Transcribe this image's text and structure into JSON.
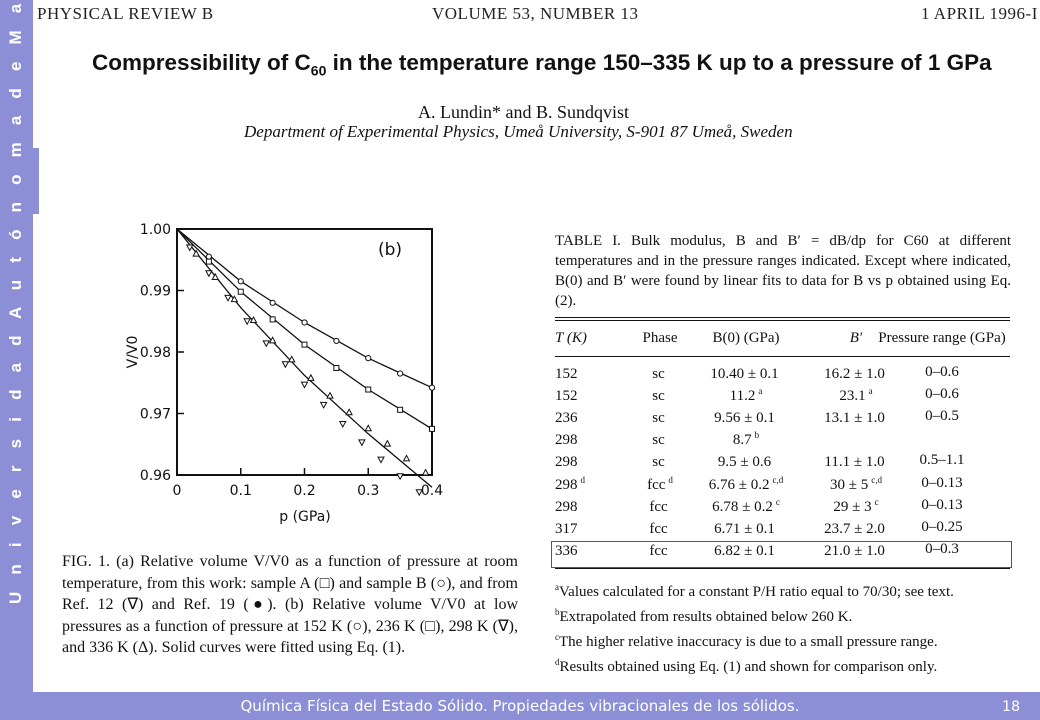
{
  "sidebar": {
    "text": "U n i v e r s i d a d   A u t ó n o m a   d e   M a d r i d"
  },
  "header": {
    "journal": "PHYSICAL REVIEW B",
    "volume": "VOLUME 53, NUMBER 13",
    "date": "1 APRIL 1996-I"
  },
  "title": {
    "before": "Compressibility of C",
    "sub": "60",
    "after": " in the temperature range 150–335 K up to a pressure of 1 GPa"
  },
  "authors": "A. Lundin* and B. Sundqvist",
  "affiliation": "Department of Experimental Physics, Umeå University, S-901 87 Umeå, Sweden",
  "table": {
    "caption": "TABLE I. Bulk modulus, B and B′ = dB/dp for C60 at different temperatures and in the pressure ranges indicated. Except where indicated, B(0) and B′ were found by linear fits to data for B vs p obtained using Eq. (2).",
    "columns": [
      "T (K)",
      "Phase",
      "B(0) (GPa)",
      "B′",
      "Pressure range (GPa)"
    ],
    "rows": [
      {
        "t": "152",
        "t_sup": "",
        "phase": "sc",
        "phase_sup": "",
        "b0": "10.40 ± 0.1",
        "b0_sup": "",
        "bp": "16.2 ± 1.0",
        "bp_sup": "",
        "range": "0–0.6"
      },
      {
        "t": "152",
        "t_sup": "",
        "phase": "sc",
        "phase_sup": "",
        "b0": "11.2",
        "b0_sup": "a",
        "bp": "23.1",
        "bp_sup": "a",
        "range": "0–0.6"
      },
      {
        "t": "236",
        "t_sup": "",
        "phase": "sc",
        "phase_sup": "",
        "b0": "9.56 ± 0.1",
        "b0_sup": "",
        "bp": "13.1 ± 1.0",
        "bp_sup": "",
        "range": "0–0.5"
      },
      {
        "t": "298",
        "t_sup": "",
        "phase": "sc",
        "phase_sup": "",
        "b0": "8.7",
        "b0_sup": "b",
        "bp": "",
        "bp_sup": "",
        "range": ""
      },
      {
        "t": "298",
        "t_sup": "",
        "phase": "sc",
        "phase_sup": "",
        "b0": "9.5 ± 0.6",
        "b0_sup": "",
        "bp": "11.1 ± 1.0",
        "bp_sup": "",
        "range": "0.5–1.1"
      },
      {
        "t": "298",
        "t_sup": "d",
        "phase": "fcc",
        "phase_sup": "d",
        "b0": "6.76 ± 0.2",
        "b0_sup": "c,d",
        "bp": "30 ± 5",
        "bp_sup": "c,d",
        "range": "0–0.13"
      },
      {
        "t": "298",
        "t_sup": "",
        "phase": "fcc",
        "phase_sup": "",
        "b0": "6.78 ± 0.2",
        "b0_sup": "c",
        "bp": "29 ± 3",
        "bp_sup": "c",
        "range": "0–0.13"
      },
      {
        "t": "317",
        "t_sup": "",
        "phase": "fcc",
        "phase_sup": "",
        "b0": "6.71 ± 0.1",
        "b0_sup": "",
        "bp": "23.7 ± 2.0",
        "bp_sup": "",
        "range": "0–0.25"
      },
      {
        "t": "336",
        "t_sup": "",
        "phase": "fcc",
        "phase_sup": "",
        "b0": "6.82 ± 0.1",
        "b0_sup": "",
        "bp": "21.0 ± 1.0",
        "bp_sup": "",
        "range": "0–0.3"
      }
    ],
    "footnotes": [
      {
        "mark": "a",
        "text": "Values calculated for a constant P/H ratio equal to 70/30; see text."
      },
      {
        "mark": "b",
        "text": "Extrapolated from results obtained below 260 K."
      },
      {
        "mark": "c",
        "text": "The higher relative inaccuracy is due to a small pressure range."
      },
      {
        "mark": "d",
        "text": "Results obtained using Eq. (1) and shown for comparison only."
      }
    ]
  },
  "figure": {
    "caption": "FIG. 1. (a) Relative volume V/V0 as a function of pressure at room temperature, from this work: sample A (□) and sample B (○), and from Ref. 12 (∇) and Ref. 19 (●). (b) Relative volume V/V0 at low pressures as a function of pressure at 152 K (○), 236 K (□), 298 K (∇), and 336 K (Δ). Solid curves were fitted using Eq. (1)."
  },
  "chart_data": {
    "type": "scatter",
    "panel_label": "(b)",
    "xlabel": "p (GPa)",
    "ylabel": "V/V0",
    "xlim": [
      0,
      0.4
    ],
    "ylim": [
      0.96,
      1.0
    ],
    "x_ticks": [
      "0",
      "0.1",
      "0.2",
      "0.3",
      "0.4"
    ],
    "y_ticks": [
      "0.96",
      "0.97",
      "0.98",
      "0.99",
      "1.00"
    ],
    "series": [
      {
        "marker": "circle",
        "x": [
          0.05,
          0.1,
          0.15,
          0.2,
          0.25,
          0.3,
          0.35,
          0.4
        ],
        "y": [
          0.9955,
          0.9915,
          0.988,
          0.9848,
          0.9818,
          0.979,
          0.9765,
          0.9742
        ]
      },
      {
        "marker": "square",
        "x": [
          0.05,
          0.1,
          0.15,
          0.2,
          0.25,
          0.3,
          0.35,
          0.4
        ],
        "y": [
          0.9947,
          0.9898,
          0.9853,
          0.9812,
          0.9774,
          0.9739,
          0.9706,
          0.9675
        ]
      },
      {
        "marker": "triangle-down",
        "x": [
          0.02,
          0.05,
          0.08,
          0.11,
          0.14,
          0.17,
          0.2,
          0.23,
          0.26,
          0.29,
          0.32,
          0.35,
          0.38
        ],
        "y": [
          0.997,
          0.9928,
          0.9888,
          0.985,
          0.9814,
          0.978,
          0.9747,
          0.9714,
          0.9683,
          0.9653,
          0.9625,
          0.9598,
          0.9572
        ]
      },
      {
        "marker": "triangle-up",
        "x": [
          0.03,
          0.06,
          0.09,
          0.12,
          0.15,
          0.18,
          0.21,
          0.24,
          0.27,
          0.3,
          0.33,
          0.36,
          0.39
        ],
        "y": [
          0.996,
          0.9922,
          0.9886,
          0.9852,
          0.9819,
          0.9788,
          0.9758,
          0.9729,
          0.9702,
          0.9676,
          0.9651,
          0.9627,
          0.9604
        ]
      }
    ],
    "fits": [
      {
        "x": [
          0,
          0.1,
          0.2,
          0.3,
          0.4
        ],
        "y": [
          1.0,
          0.9915,
          0.9848,
          0.979,
          0.9742
        ]
      },
      {
        "x": [
          0,
          0.1,
          0.2,
          0.3,
          0.4
        ],
        "y": [
          1.0,
          0.9898,
          0.9812,
          0.9739,
          0.9675
        ]
      },
      {
        "x": [
          0,
          0.1,
          0.2,
          0.3,
          0.4
        ],
        "y": [
          1.0,
          0.9872,
          0.9762,
          0.9667,
          0.958
        ]
      }
    ]
  },
  "footer": {
    "text": "Química Física del Estado Sólido. Propiedades vibracionales de los sólidos.",
    "page": "18"
  }
}
